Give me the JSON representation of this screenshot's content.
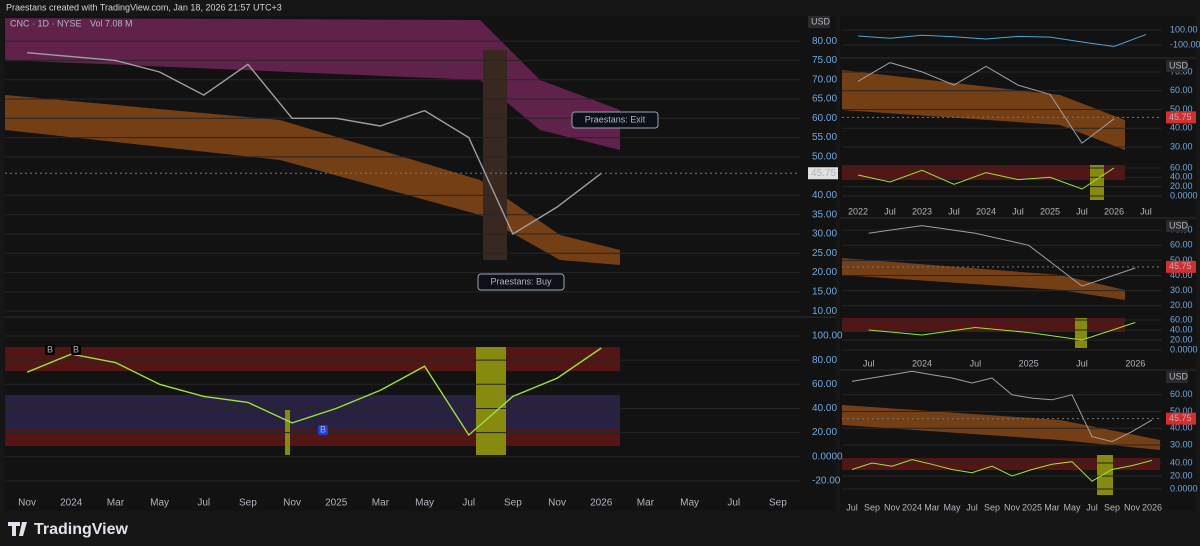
{
  "page": {
    "caption": "Praestans created with TradingView.com, Jan 18, 2026 21:57 UTC+3",
    "brand": "TradingView"
  },
  "chart_data": [
    {
      "type": "line",
      "symbol": "CNC · 1D · NYSE",
      "volume": "Vol 7.08 M",
      "currency": "USD",
      "last_price": 45.75,
      "annotations": [
        "Praestans: Exit",
        "Praestans: Buy"
      ],
      "series": [
        {
          "color": "#a0a0a0",
          "values": [
            77,
            76,
            75,
            72,
            66,
            74,
            60,
            60,
            58,
            62,
            55,
            30,
            37,
            45.75,
            null,
            null,
            null,
            null
          ]
        }
      ],
      "ylim": [
        9,
        86
      ],
      "yticks": [
        {
          "value": 80,
          "label": "80.00"
        },
        {
          "value": 75,
          "label": "75.00"
        },
        {
          "value": 70,
          "label": "70.00"
        },
        {
          "value": 65,
          "label": "65.00"
        },
        {
          "value": 60,
          "label": "60.00"
        },
        {
          "value": 55,
          "label": "55.00"
        },
        {
          "value": 50,
          "label": "50.00"
        },
        {
          "value": 40,
          "label": "40.00"
        },
        {
          "value": 35,
          "label": "35.00"
        },
        {
          "value": 30,
          "label": "30.00"
        },
        {
          "value": 25,
          "label": "25.00"
        },
        {
          "value": 20,
          "label": "20.00"
        },
        {
          "value": 15,
          "label": "15.00"
        },
        {
          "value": 10,
          "label": "10.00"
        }
      ]
    },
    {
      "type": "line",
      "categories": [
        "Nov",
        "2024",
        "Mar",
        "May",
        "Jul",
        "Sep",
        "Nov",
        "2025",
        "Mar",
        "May",
        "Jul",
        "Sep",
        "Nov",
        "2026",
        "Mar",
        "May",
        "Jul",
        "Sep"
      ],
      "markers": [
        "B",
        "B",
        "B"
      ],
      "series": [
        {
          "color": "#9be33a",
          "values": [
            70,
            85,
            78,
            60,
            50,
            45,
            28,
            40,
            55,
            75,
            18,
            50,
            65,
            90,
            null,
            null,
            null,
            null
          ]
        }
      ],
      "ylim": [
        -27.5,
        113.2
      ],
      "yticks": [
        {
          "value": 100,
          "label": "100.00"
        },
        {
          "value": 80,
          "label": "80.00"
        },
        {
          "value": 60,
          "label": "60.00"
        },
        {
          "value": 40,
          "label": "40.00"
        },
        {
          "value": 20,
          "label": "20.00"
        },
        {
          "value": 0,
          "label": "0.0000"
        },
        {
          "value": -20,
          "label": "-20.00"
        }
      ]
    },
    {
      "type": "line",
      "series": [
        {
          "color": "#4fa3d9",
          "values": [
            20,
            -10,
            30,
            10,
            -20,
            15,
            5,
            -60,
            -120,
            40
          ]
        }
      ],
      "ylim": [
        -207,
        233
      ],
      "yticks": [
        {
          "value": 100,
          "label": "100.00"
        },
        {
          "value": -100,
          "label": "-100.00"
        }
      ]
    },
    {
      "type": "line",
      "currency": "USD",
      "last_price": 45.75,
      "series": [
        {
          "color": "#a0a0a0",
          "values": [
            65,
            75,
            70,
            63,
            73,
            63,
            58,
            32,
            45,
            null
          ]
        }
      ],
      "ylim": [
        25.7,
        75.3
      ],
      "yticks": [
        {
          "value": 70,
          "label": "70.00"
        },
        {
          "value": 60,
          "label": "60.00"
        },
        {
          "value": 50,
          "label": "50.00"
        },
        {
          "value": 40,
          "label": "40.00"
        },
        {
          "value": 30,
          "label": "30.00"
        }
      ]
    },
    {
      "type": "line",
      "categories": [
        "2022",
        "Jul",
        "2023",
        "Jul",
        "2024",
        "Jul",
        "2025",
        "Jul",
        "2026",
        "Jul"
      ],
      "series": [
        {
          "color": "#9be33a",
          "values": [
            45,
            30,
            55,
            25,
            50,
            35,
            40,
            15,
            60,
            null
          ]
        }
      ],
      "ylim": [
        -19.3,
        77
      ],
      "yticks": [
        {
          "value": 60,
          "label": "60.00"
        },
        {
          "value": 40,
          "label": "40.00"
        },
        {
          "value": 20,
          "label": "20.00"
        },
        {
          "value": 0,
          "label": "0.0000"
        }
      ]
    },
    {
      "type": "line",
      "currency": "USD",
      "last_price": 45.75,
      "series": [
        {
          "color": "#a0a0a0",
          "values": [
            68,
            73,
            68,
            60,
            33,
            45
          ]
        }
      ],
      "ylim": [
        15.9,
        75.4
      ],
      "yticks": [
        {
          "value": 70,
          "label": "70.00"
        },
        {
          "value": 60,
          "label": "60.00"
        },
        {
          "value": 50,
          "label": "50.00"
        },
        {
          "value": 40,
          "label": "40.00"
        },
        {
          "value": 30,
          "label": "30.00"
        },
        {
          "value": 20,
          "label": "20.00"
        }
      ]
    },
    {
      "type": "line",
      "categories": [
        "Jul",
        "2024",
        "Jul",
        "2025",
        "Jul",
        "2026"
      ],
      "series": [
        {
          "color": "#9be33a",
          "values": [
            40,
            30,
            45,
            35,
            20,
            55
          ]
        }
      ],
      "ylim": [
        -16,
        68
      ],
      "yticks": [
        {
          "value": 60,
          "label": "60.00"
        },
        {
          "value": 40,
          "label": "40.00"
        },
        {
          "value": 20,
          "label": "20.00"
        },
        {
          "value": 0,
          "label": "0.0000"
        }
      ]
    },
    {
      "type": "line",
      "currency": "USD",
      "last_price": 45.75,
      "series": [
        {
          "color": "#a0a0a0",
          "values": [
            68,
            70,
            72,
            74,
            72,
            70,
            67,
            70,
            60,
            58,
            57,
            60,
            35,
            32,
            38,
            45
          ]
        }
      ],
      "ylim": [
        25.8,
        73
      ],
      "yticks": [
        {
          "value": 60,
          "label": "60.00"
        },
        {
          "value": 50,
          "label": "50.00"
        },
        {
          "value": 40,
          "label": "40.00"
        },
        {
          "value": 30,
          "label": "30.00"
        }
      ]
    },
    {
      "type": "line",
      "categories": [
        "Jul",
        "Sep",
        "Nov",
        "2024",
        "Mar",
        "May",
        "Jul",
        "Sep",
        "Nov",
        "2025",
        "Mar",
        "May",
        "Jul",
        "Sep",
        "Nov",
        "2026"
      ],
      "series": [
        {
          "color": "#9be33a",
          "values": [
            30,
            40,
            35,
            45,
            38,
            30,
            25,
            35,
            20,
            30,
            38,
            42,
            12,
            30,
            36,
            44
          ]
        }
      ],
      "ylim": [
        -17,
        52.3
      ],
      "yticks": [
        {
          "value": 40,
          "label": "40.00"
        },
        {
          "value": 20,
          "label": "20.00"
        },
        {
          "value": 0,
          "label": "0.0000"
        }
      ]
    }
  ]
}
